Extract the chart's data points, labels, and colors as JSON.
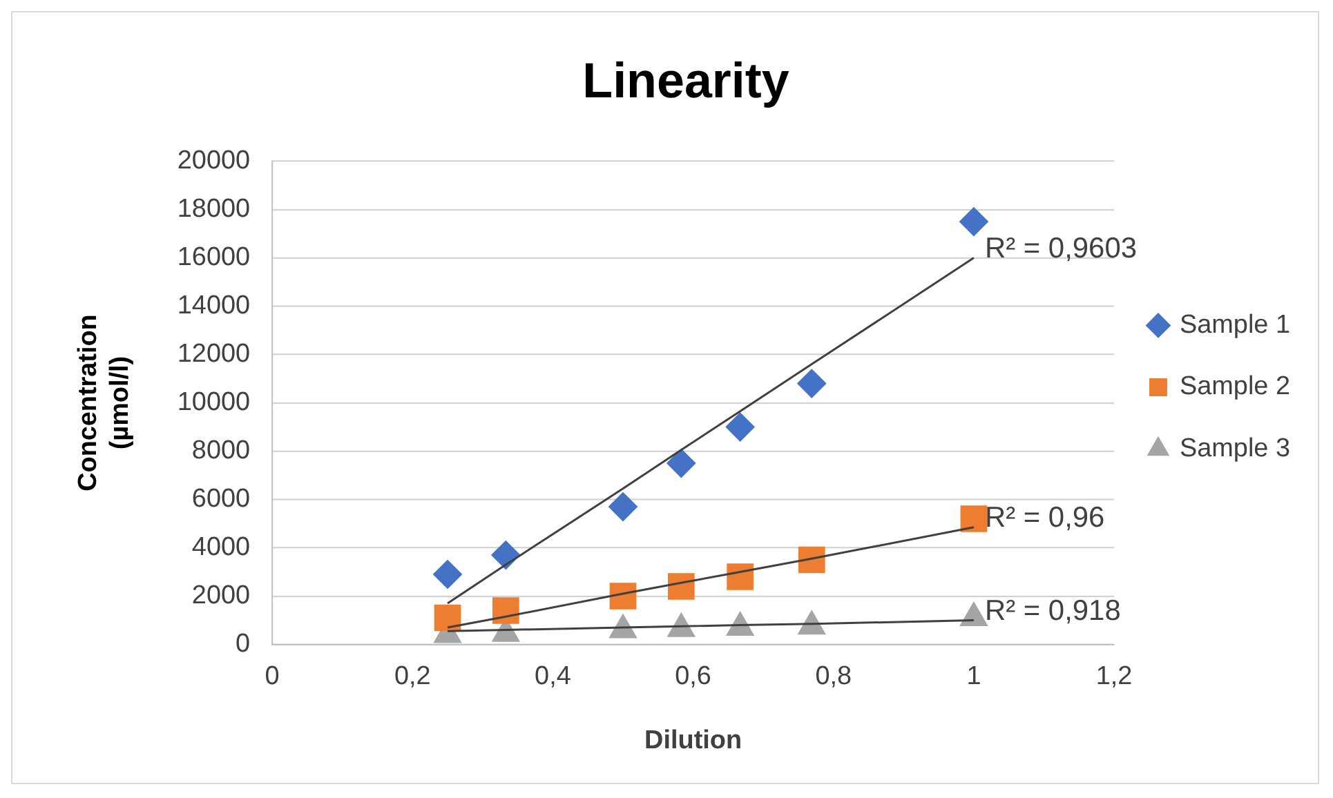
{
  "chart_data": {
    "type": "scatter",
    "title": "Linearity",
    "xlabel": "Dilution",
    "ylabel": "Concentration (µmol/l)",
    "x": [
      0.25,
      0.333,
      0.5,
      0.583,
      0.667,
      0.769,
      1
    ],
    "series": [
      {
        "name": "Sample 1",
        "color": "#4472c4",
        "marker": "diamond",
        "values": [
          2900,
          3700,
          5700,
          7500,
          9000,
          10800,
          17500
        ]
      },
      {
        "name": "Sample 2",
        "color": "#ed7d31",
        "marker": "square",
        "values": [
          1100,
          1400,
          2000,
          2400,
          2800,
          3500,
          5200
        ]
      },
      {
        "name": "Sample 3",
        "color": "#a5a5a5",
        "marker": "triangle",
        "values": [
          400,
          450,
          600,
          650,
          700,
          750,
          1100
        ]
      },
      {
        "type": "line",
        "color": "#404040",
        "marker": "none",
        "values": [
          1700,
          3300,
          6450,
          8050,
          9650,
          11600,
          16000
        ]
      },
      {
        "type": "line",
        "color": "#404040",
        "marker": "none",
        "values": [
          700,
          1150,
          2100,
          2550,
          3000,
          3550,
          4850
        ]
      },
      {
        "type": "line",
        "color": "#404040",
        "marker": "none",
        "values": [
          550,
          600,
          700,
          750,
          800,
          850,
          1000
        ]
      }
    ],
    "xlim": [
      0,
      1.2
    ],
    "xticks": [
      0,
      {
        "value": 0.2,
        "label": "0,2"
      },
      {
        "value": 0.4,
        "label": "0,4"
      },
      {
        "value": 0.6,
        "label": "0,6"
      },
      {
        "value": 0.8,
        "label": "0,8"
      },
      1,
      {
        "value": 1.2,
        "label": "1,2"
      }
    ],
    "ylim": [
      0,
      20000
    ],
    "yticks": [
      0,
      2000,
      4000,
      6000,
      8000,
      10000,
      12000,
      14000,
      16000,
      18000,
      20000
    ],
    "grid": "y",
    "legend": "right",
    "annotations": [
      "R² = 0,9603",
      "R² = 0,96",
      "R² = 0,918"
    ]
  }
}
